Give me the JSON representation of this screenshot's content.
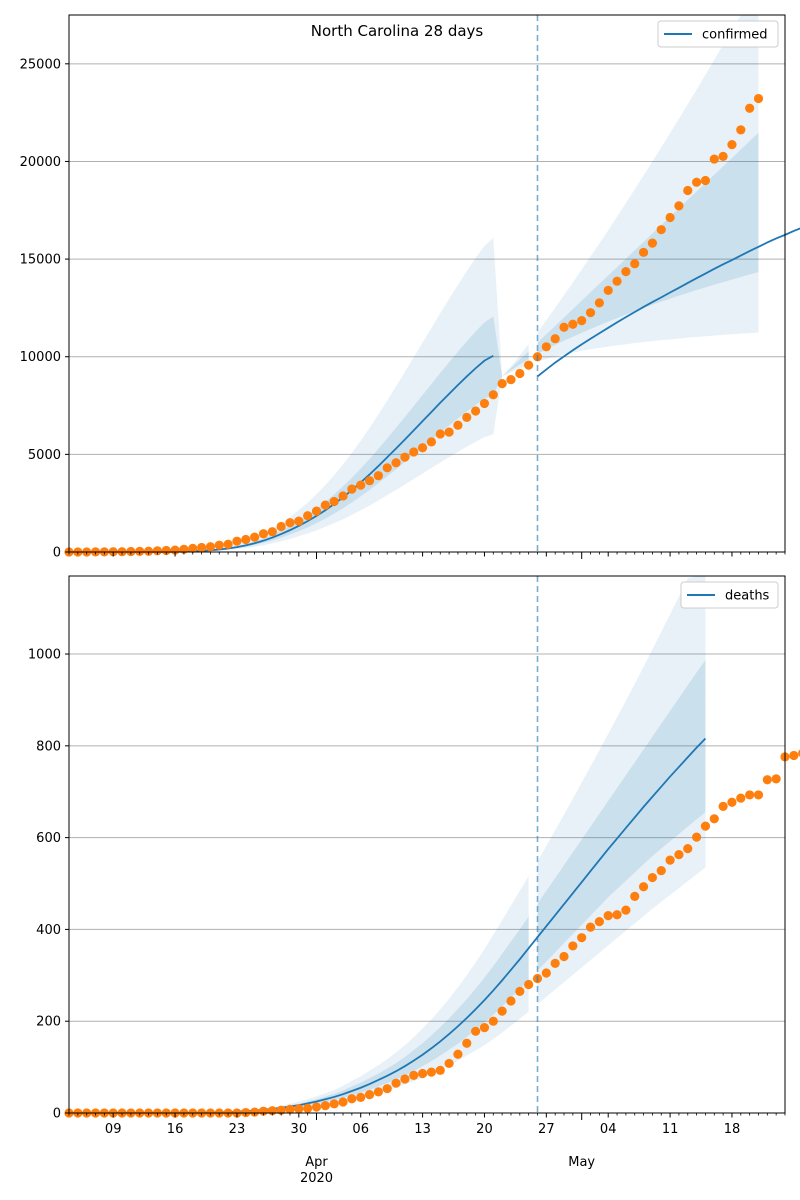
{
  "figure_title": "North Carolina 28 days",
  "colors": {
    "model": "#1f77b4",
    "observed": "#ff7f0e",
    "band": "#1f77b4",
    "forecast_line": "#1f77b4",
    "grid": "#b0b0b0"
  },
  "chart_data": [
    {
      "type": "line",
      "panel": "top",
      "title": "North Carolina 28 days",
      "legend": [
        "confirmed"
      ],
      "legend_position": "top-right",
      "grid": "y",
      "x_range": [
        "2020-03-04",
        "2020-05-24"
      ],
      "ylim": [
        0,
        27500
      ],
      "yticks": [
        0,
        5000,
        10000,
        15000,
        20000,
        25000
      ],
      "forecast_start": "2020-04-26",
      "series": [
        {
          "name": "confirmed",
          "role": "model",
          "x_start": "2020-03-04",
          "values": [
            0,
            0,
            0,
            0,
            0,
            0,
            0,
            0,
            0,
            0,
            0,
            0,
            10,
            20,
            35,
            60,
            90,
            130,
            180,
            250,
            340,
            450,
            580,
            740,
            920,
            1120,
            1340,
            1580,
            1850,
            2140,
            2460,
            2800,
            3170,
            3560,
            3970,
            4400,
            4850,
            5300,
            5760,
            6230,
            6700,
            7170,
            7640,
            8100,
            8550,
            8990,
            9410,
            9800,
            10050
          ]
        },
        {
          "name": "confirmed forecast",
          "role": "model",
          "x_start": "2020-04-26",
          "values": [
            8990,
            9350,
            9700,
            10020,
            10330,
            10630,
            10920,
            11200,
            11480,
            11760,
            12030,
            12290,
            12550,
            12800,
            13040,
            13290,
            13530,
            13780,
            14020,
            14260,
            14500,
            14730,
            14950,
            15180,
            15410,
            15630,
            15850,
            16060,
            16240,
            16440,
            16620
          ]
        },
        {
          "name": "observed",
          "role": "observed",
          "x_start": "2020-03-04",
          "values": [
            0,
            0,
            0,
            5,
            7,
            12,
            15,
            24,
            32,
            40,
            62,
            78,
            97,
            138,
            184,
            230,
            270,
            350,
            398,
            554,
            640,
            763,
            935,
            1040,
            1307,
            1498,
            1584,
            1857,
            2093,
            2402,
            2585,
            2870,
            3221,
            3426,
            3651,
            3908,
            4312,
            4570,
            4856,
            5123,
            5340,
            5639,
            6045,
            6140,
            6493,
            6895,
            7220,
            7608,
            8052,
            8623,
            8830,
            9142,
            9568,
            10000,
            10509,
            10923,
            11509,
            11664,
            11848,
            12256,
            12758,
            13397,
            13868,
            14360,
            14764,
            15346,
            15816,
            16507,
            17129,
            17726,
            18512,
            18938,
            19023,
            20122,
            20262,
            20860,
            21618,
            22725,
            23222
          ]
        }
      ],
      "bands": [
        {
          "level": "inner",
          "x_start": "2020-03-04",
          "lower": [
            0,
            0,
            0,
            0,
            0,
            0,
            0,
            0,
            0,
            0,
            0,
            0,
            8,
            16,
            28,
            48,
            72,
            104,
            145,
            200,
            272,
            360,
            465,
            592,
            736,
            896,
            1072,
            1264,
            1480,
            1712,
            1968,
            2240,
            2536,
            2848,
            3176,
            3520,
            3880,
            4240,
            4608,
            4984,
            5360,
            5736,
            6112,
            6480,
            6840,
            7192,
            7528,
            7840,
            8040,
            8990,
            9300,
            9600,
            9880,
            10140,
            10380,
            10600,
            10820,
            11020,
            11220,
            11420,
            11610,
            11800,
            11980,
            12160,
            12330,
            12500,
            12660,
            12820,
            12970,
            13120,
            13270,
            13410,
            13550,
            13690,
            13820,
            13950,
            14080,
            14210,
            14330
          ],
          "upper": [
            0,
            0,
            0,
            0,
            0,
            0,
            0,
            0,
            0,
            0,
            0,
            0,
            12,
            24,
            42,
            72,
            108,
            156,
            216,
            300,
            408,
            540,
            696,
            888,
            1104,
            1344,
            1608,
            1896,
            2220,
            2568,
            2952,
            3360,
            3804,
            4272,
            4764,
            5280,
            5820,
            6360,
            6912,
            7476,
            8040,
            8604,
            9168,
            9720,
            10260,
            10788,
            11292,
            11760,
            12060,
            8990,
            9420,
            9860,
            10290,
            10720,
            11150,
            11580,
            12010,
            12440,
            12870,
            13300,
            13730,
            14160,
            14590,
            15020,
            15450,
            15880,
            16310,
            16740,
            17170,
            17600,
            18030,
            18460,
            18890,
            19320,
            19750,
            20180,
            20610,
            21040,
            21470
          ]
        },
        {
          "level": "outer",
          "x_start": "2020-03-04",
          "lower": [
            0,
            0,
            0,
            0,
            0,
            0,
            0,
            0,
            0,
            0,
            0,
            0,
            6,
            12,
            21,
            36,
            54,
            78,
            108,
            150,
            204,
            270,
            348,
            444,
            552,
            672,
            804,
            948,
            1110,
            1284,
            1476,
            1680,
            1902,
            2136,
            2382,
            2640,
            2910,
            3180,
            3456,
            3738,
            4020,
            4302,
            4584,
            4860,
            5130,
            5394,
            5646,
            5880,
            6030,
            8990,
            9200,
            9400,
            9580,
            9740,
            9880,
            10000,
            10110,
            10210,
            10300,
            10380,
            10450,
            10520,
            10580,
            10640,
            10700,
            10750,
            10800,
            10850,
            10890,
            10930,
            10970,
            11010,
            11050,
            11090,
            11120,
            11150,
            11180,
            11210,
            11240
          ],
          "upper": [
            0,
            0,
            0,
            0,
            0,
            0,
            0,
            0,
            0,
            0,
            0,
            0,
            16,
            32,
            56,
            96,
            144,
            208,
            288,
            400,
            544,
            720,
            928,
            1184,
            1472,
            1792,
            2144,
            2528,
            2960,
            3424,
            3936,
            4480,
            5072,
            5696,
            6352,
            7040,
            7760,
            8480,
            9216,
            9968,
            10720,
            11472,
            12224,
            12960,
            13680,
            14384,
            15056,
            15680,
            16080,
            8990,
            9500,
            10060,
            10650,
            11250,
            11870,
            12500,
            13150,
            13800,
            14460,
            15130,
            15800,
            16480,
            17170,
            17870,
            18570,
            19280,
            20000,
            20720,
            21450,
            22190,
            22930,
            23680,
            24440,
            25200,
            25970,
            26740,
            27500,
            27500,
            27500
          ]
        }
      ]
    },
    {
      "type": "line",
      "panel": "bottom",
      "legend": [
        "deaths"
      ],
      "legend_position": "top-right",
      "grid": "y",
      "x_range": [
        "2020-03-04",
        "2020-05-24"
      ],
      "ylim": [
        0,
        1170
      ],
      "yticks": [
        0,
        200,
        400,
        600,
        800,
        1000
      ],
      "forecast_start": "2020-04-26",
      "x_ticks_minor_labels": [
        "09",
        "16",
        "23",
        "30",
        "06",
        "13",
        "20",
        "27",
        "04",
        "11",
        "18"
      ],
      "x_ticks_major_labels": [
        {
          "label": "Apr\n2020",
          "date": "2020-04-01"
        },
        {
          "label": "May",
          "date": "2020-05-01"
        }
      ],
      "series": [
        {
          "name": "deaths",
          "role": "model",
          "x_start": "2020-03-04",
          "values": [
            0,
            0,
            0,
            0,
            0,
            0,
            0,
            0,
            0,
            0,
            0,
            0,
            0,
            0,
            0,
            0,
            1,
            1,
            2,
            3,
            4,
            5,
            7,
            9,
            11,
            14,
            17,
            21,
            25,
            30,
            35,
            41,
            48,
            55,
            63,
            72,
            81,
            91,
            102,
            114,
            127,
            141,
            156,
            172,
            189,
            207,
            226,
            246,
            267,
            289,
            312,
            335,
            359,
            383,
            407,
            431,
            455,
            479,
            503,
            527,
            551,
            575,
            598,
            621,
            644,
            667,
            689,
            711,
            733,
            754,
            775,
            796,
            816
          ]
        },
        {
          "name": "observed",
          "role": "observed",
          "x_start": "2020-03-04",
          "values": [
            0,
            0,
            0,
            0,
            0,
            0,
            0,
            0,
            0,
            0,
            0,
            0,
            0,
            0,
            0,
            0,
            0,
            0,
            0,
            0,
            1,
            2,
            4,
            5,
            6,
            8,
            9,
            10,
            13,
            16,
            20,
            24,
            31,
            34,
            40,
            46,
            53,
            65,
            74,
            82,
            86,
            89,
            93,
            108,
            128,
            152,
            178,
            186,
            200,
            222,
            244,
            265,
            280,
            293,
            305,
            326,
            341,
            364,
            382,
            405,
            417,
            430,
            432,
            442,
            472,
            493,
            513,
            528,
            551,
            563,
            576,
            601,
            625,
            641,
            668,
            677,
            686,
            693,
            693,
            726,
            728,
            776,
            779,
            784
          ]
        }
      ],
      "bands": [
        {
          "level": "inner",
          "x_start": "2020-03-04",
          "lower": [
            0,
            0,
            0,
            0,
            0,
            0,
            0,
            0,
            0,
            0,
            0,
            0,
            0,
            0,
            0,
            0,
            1,
            1,
            2,
            2,
            3,
            4,
            6,
            7,
            9,
            11,
            14,
            17,
            20,
            24,
            28,
            33,
            38,
            44,
            50,
            58,
            65,
            73,
            82,
            91,
            102,
            113,
            125,
            138,
            151,
            166,
            181,
            197,
            214,
            232,
            251,
            270,
            290,
            310,
            330,
            350,
            370,
            390,
            410,
            430,
            450,
            470,
            488,
            506,
            524,
            542,
            560,
            576,
            592,
            608,
            624,
            640,
            655
          ],
          "upper": [
            0,
            0,
            0,
            0,
            0,
            0,
            0,
            0,
            0,
            0,
            0,
            0,
            0,
            0,
            0,
            0,
            1,
            1,
            2,
            4,
            5,
            6,
            8,
            11,
            13,
            17,
            20,
            25,
            30,
            36,
            42,
            49,
            58,
            66,
            76,
            86,
            97,
            109,
            122,
            137,
            152,
            169,
            187,
            206,
            227,
            248,
            271,
            295,
            320,
            347,
            374,
            400,
            428,
            456,
            484,
            512,
            540,
            568,
            596,
            624,
            652,
            680,
            708,
            736,
            764,
            792,
            820,
            848,
            876,
            904,
            932,
            960,
            987
          ]
        },
        {
          "level": "outer",
          "x_start": "2020-03-04",
          "lower": [
            0,
            0,
            0,
            0,
            0,
            0,
            0,
            0,
            0,
            0,
            0,
            0,
            0,
            0,
            0,
            0,
            1,
            1,
            1,
            2,
            2,
            3,
            5,
            6,
            7,
            9,
            11,
            13,
            15,
            18,
            21,
            25,
            29,
            33,
            38,
            43,
            49,
            55,
            62,
            69,
            76,
            85,
            94,
            104,
            114,
            125,
            136,
            148,
            161,
            175,
            190,
            205,
            221,
            237,
            253,
            269,
            285,
            301,
            317,
            333,
            349,
            365,
            381,
            397,
            413,
            429,
            445,
            460,
            475,
            490,
            505,
            520,
            535
          ],
          "upper": [
            0,
            0,
            0,
            0,
            0,
            0,
            0,
            0,
            0,
            0,
            0,
            0,
            0,
            0,
            0,
            0,
            1,
            2,
            3,
            5,
            6,
            8,
            10,
            13,
            16,
            20,
            25,
            30,
            36,
            43,
            50,
            59,
            70,
            80,
            92,
            104,
            117,
            132,
            148,
            165,
            184,
            204,
            226,
            249,
            274,
            300,
            328,
            357,
            388,
            420,
            452,
            484,
            516,
            548,
            582,
            616,
            650,
            685,
            720,
            755,
            790,
            826,
            862,
            898,
            935,
            972,
            1010,
            1048,
            1086,
            1125,
            1165,
            1170,
            1170
          ]
        }
      ]
    }
  ]
}
